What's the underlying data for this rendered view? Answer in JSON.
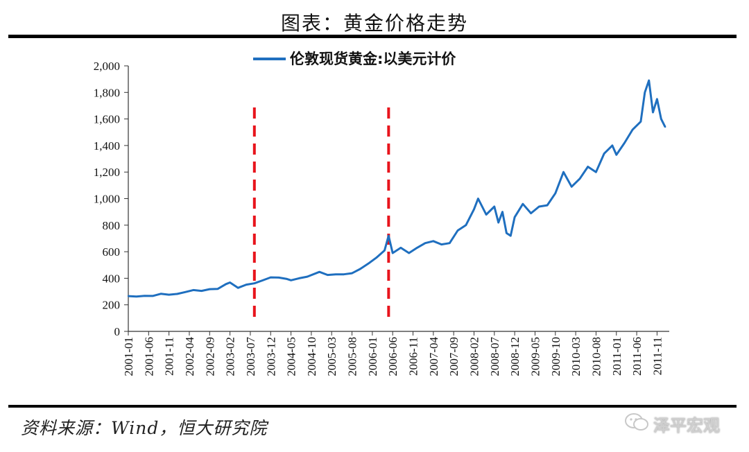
{
  "header": {
    "title": "图表：黄金价格走势"
  },
  "footer": {
    "source": "资料来源：Wind，恒大研究院"
  },
  "watermark": {
    "text": "泽平宏观",
    "icon": "wechat-icon"
  },
  "chart_data": {
    "type": "line",
    "legend": {
      "label": "伦敦现货黄金:以美元计价",
      "placement": "top-center"
    },
    "series": [
      {
        "name": "伦敦现货黄金:以美元计价",
        "color": "#1f6fbf",
        "points": [
          [
            "2001-01",
            266
          ],
          [
            "2001-03",
            262
          ],
          [
            "2001-05",
            268
          ],
          [
            "2001-07",
            267
          ],
          [
            "2001-09",
            283
          ],
          [
            "2001-11",
            276
          ],
          [
            "2002-01",
            282
          ],
          [
            "2002-03",
            296
          ],
          [
            "2002-05",
            311
          ],
          [
            "2002-07",
            305
          ],
          [
            "2002-09",
            318
          ],
          [
            "2002-11",
            320
          ],
          [
            "2003-01",
            356
          ],
          [
            "2003-02",
            368
          ],
          [
            "2003-04",
            328
          ],
          [
            "2003-06",
            352
          ],
          [
            "2003-08",
            362
          ],
          [
            "2003-10",
            384
          ],
          [
            "2003-12",
            407
          ],
          [
            "2004-02",
            405
          ],
          [
            "2004-04",
            395
          ],
          [
            "2004-05",
            385
          ],
          [
            "2004-07",
            400
          ],
          [
            "2004-09",
            412
          ],
          [
            "2004-12",
            448
          ],
          [
            "2005-02",
            425
          ],
          [
            "2005-04",
            429
          ],
          [
            "2005-06",
            430
          ],
          [
            "2005-08",
            438
          ],
          [
            "2005-10",
            470
          ],
          [
            "2005-12",
            510
          ],
          [
            "2006-02",
            555
          ],
          [
            "2006-04",
            610
          ],
          [
            "2006-05",
            720
          ],
          [
            "2006-06",
            590
          ],
          [
            "2006-08",
            630
          ],
          [
            "2006-10",
            590
          ],
          [
            "2006-12",
            630
          ],
          [
            "2007-02",
            665
          ],
          [
            "2007-04",
            680
          ],
          [
            "2007-06",
            655
          ],
          [
            "2007-08",
            665
          ],
          [
            "2007-10",
            760
          ],
          [
            "2007-12",
            800
          ],
          [
            "2008-02",
            920
          ],
          [
            "2008-03",
            1000
          ],
          [
            "2008-05",
            880
          ],
          [
            "2008-07",
            940
          ],
          [
            "2008-08",
            820
          ],
          [
            "2008-09",
            900
          ],
          [
            "2008-10",
            740
          ],
          [
            "2008-11",
            720
          ],
          [
            "2008-12",
            860
          ],
          [
            "2009-02",
            960
          ],
          [
            "2009-04",
            890
          ],
          [
            "2009-06",
            940
          ],
          [
            "2009-08",
            950
          ],
          [
            "2009-10",
            1040
          ],
          [
            "2009-12",
            1200
          ],
          [
            "2010-02",
            1090
          ],
          [
            "2010-04",
            1150
          ],
          [
            "2010-06",
            1240
          ],
          [
            "2010-08",
            1200
          ],
          [
            "2010-10",
            1340
          ],
          [
            "2010-12",
            1400
          ],
          [
            "2011-01",
            1330
          ],
          [
            "2011-03",
            1420
          ],
          [
            "2011-05",
            1520
          ],
          [
            "2011-07",
            1580
          ],
          [
            "2011-08",
            1800
          ],
          [
            "2011-09",
            1890
          ],
          [
            "2011-10",
            1650
          ],
          [
            "2011-11",
            1750
          ],
          [
            "2011-12",
            1600
          ],
          [
            "2012-01",
            1540
          ]
        ]
      }
    ],
    "reference_lines": [
      {
        "x": "2003-08",
        "color": "#e8141c",
        "style": "dashed"
      },
      {
        "x": "2006-05",
        "color": "#e8141c",
        "style": "dashed"
      }
    ],
    "y_axis": {
      "ylim": [
        0,
        2000
      ],
      "ticks": [
        0,
        200,
        400,
        600,
        800,
        1000,
        1200,
        1400,
        1600,
        1800,
        2000
      ],
      "tick_labels": [
        "0",
        "200",
        "400",
        "600",
        "800",
        "1,000",
        "1,200",
        "1,400",
        "1,600",
        "1,800",
        "2,000"
      ]
    },
    "x_axis": {
      "xlim": [
        "2001-01",
        "2012-02"
      ],
      "tick_labels": [
        "2001-01",
        "2001-06",
        "2001-11",
        "2002-04",
        "2002-09",
        "2003-02",
        "2003-07",
        "2003-12",
        "2004-05",
        "2004-10",
        "2005-03",
        "2005-08",
        "2006-01",
        "2006-06",
        "2006-11",
        "2007-04",
        "2007-09",
        "2008-02",
        "2008-07",
        "2008-12",
        "2009-05",
        "2009-10",
        "2010-03",
        "2010-08",
        "2011-01",
        "2011-06",
        "2011-11"
      ]
    },
    "grid": false
  }
}
